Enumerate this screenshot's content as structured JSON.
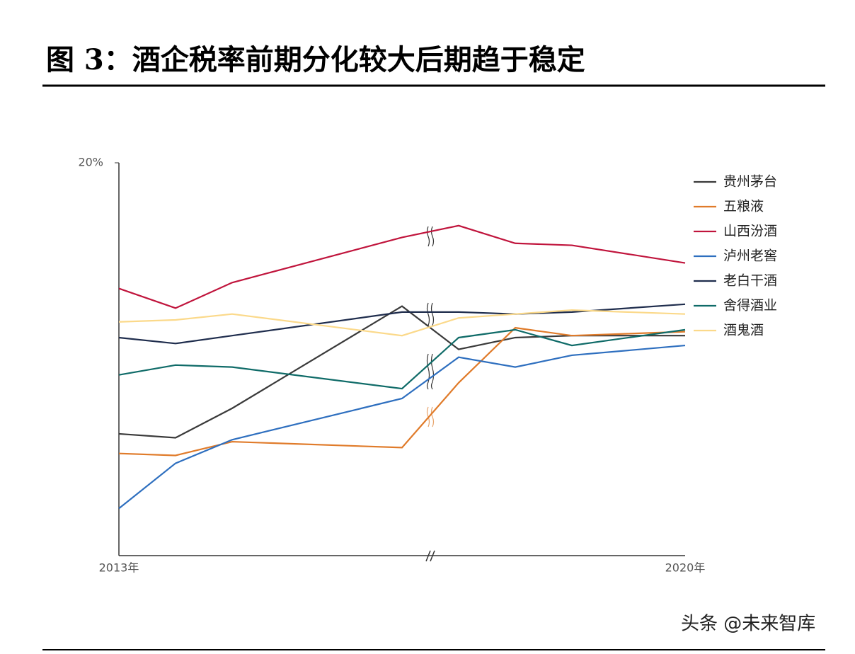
{
  "chart_data": {
    "type": "line",
    "title": "图 3：酒企税率前期分化较大后期趋于稳定",
    "categories": [
      "2013年",
      null,
      null,
      null,
      null,
      null,
      null,
      "2020年"
    ],
    "ylim": [
      0,
      20
    ],
    "yticks": [
      {
        "value": 20,
        "label": "20%"
      }
    ],
    "series": [
      {
        "name": "贵州茅台",
        "color": "#3a3a3a",
        "values": [
          6.2,
          6.0,
          7.5,
          12.7,
          10.5,
          11.1,
          11.2,
          11.2
        ]
      },
      {
        "name": "五粮液",
        "color": "#e07b2a",
        "values": [
          5.2,
          5.1,
          5.8,
          5.5,
          8.8,
          11.6,
          11.2,
          11.4
        ]
      },
      {
        "name": "山西汾酒",
        "color": "#c0143c",
        "values": [
          13.6,
          12.6,
          13.9,
          16.2,
          16.8,
          15.9,
          15.8,
          14.9
        ]
      },
      {
        "name": "泸州老窖",
        "color": "#2e6fbf",
        "values": [
          2.4,
          4.7,
          5.9,
          8.0,
          10.1,
          9.6,
          10.2,
          10.7
        ]
      },
      {
        "name": "老白干酒",
        "color": "#1f2d4d",
        "values": [
          11.1,
          10.8,
          11.2,
          12.4,
          12.4,
          12.3,
          12.4,
          12.8
        ]
      },
      {
        "name": "舍得酒业",
        "color": "#0f6b68",
        "values": [
          9.2,
          9.7,
          9.6,
          8.5,
          11.1,
          11.5,
          10.7,
          11.5
        ]
      },
      {
        "name": "酒鬼酒",
        "color": "#fbd98a",
        "values": [
          11.9,
          12.0,
          12.3,
          11.2,
          12.1,
          12.3,
          12.5,
          12.3
        ]
      }
    ]
  },
  "watermark": "头条 @未来智库"
}
